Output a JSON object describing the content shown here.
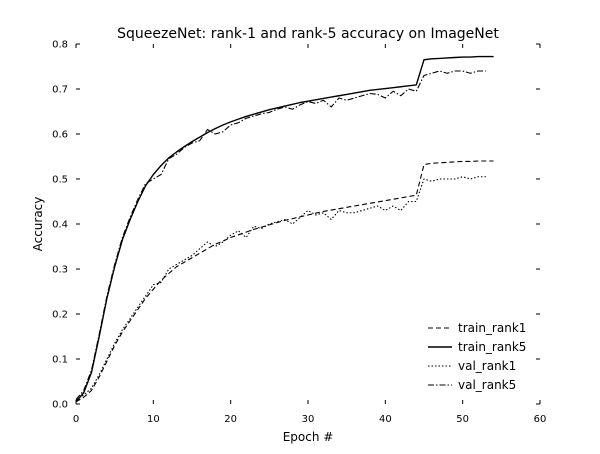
{
  "chart_data": {
    "type": "line",
    "title": "SqueezeNet: rank-1 and rank-5 accuracy on ImageNet",
    "xlabel": "Epoch #",
    "ylabel": "Accuracy",
    "xlim": [
      0,
      60
    ],
    "ylim": [
      0.0,
      0.8
    ],
    "xticks": [
      0,
      10,
      20,
      30,
      40,
      50,
      60
    ],
    "yticks": [
      0.0,
      0.1,
      0.2,
      0.3,
      0.4,
      0.5,
      0.6,
      0.7,
      0.8
    ],
    "xtick_labels": [
      "0",
      "10",
      "20",
      "30",
      "40",
      "50",
      "60"
    ],
    "ytick_labels": [
      "0.0",
      "0.1",
      "0.2",
      "0.3",
      "0.4",
      "0.5",
      "0.6",
      "0.7",
      "0.8"
    ],
    "grid": false,
    "legend_position": "lower-right",
    "series": [
      {
        "name": "train_rank1",
        "style": "dashed",
        "x": [
          0,
          1,
          2,
          3,
          4,
          5,
          6,
          7,
          8,
          9,
          10,
          11,
          12,
          13,
          14,
          15,
          16,
          17,
          18,
          19,
          20,
          21,
          22,
          23,
          24,
          25,
          26,
          27,
          28,
          29,
          30,
          31,
          32,
          33,
          34,
          35,
          36,
          37,
          38,
          39,
          40,
          41,
          42,
          43,
          44,
          45,
          46,
          47,
          48,
          49,
          50,
          51,
          52,
          53,
          54
        ],
        "y": [
          0.005,
          0.015,
          0.03,
          0.06,
          0.095,
          0.13,
          0.16,
          0.185,
          0.21,
          0.235,
          0.255,
          0.275,
          0.29,
          0.305,
          0.315,
          0.325,
          0.335,
          0.345,
          0.355,
          0.362,
          0.37,
          0.376,
          0.382,
          0.388,
          0.393,
          0.398,
          0.403,
          0.408,
          0.412,
          0.416,
          0.42,
          0.424,
          0.428,
          0.431,
          0.434,
          0.437,
          0.44,
          0.443,
          0.446,
          0.449,
          0.452,
          0.455,
          0.458,
          0.461,
          0.464,
          0.532,
          0.535,
          0.536,
          0.537,
          0.538,
          0.539,
          0.539,
          0.54,
          0.54,
          0.54
        ]
      },
      {
        "name": "train_rank5",
        "style": "solid",
        "x": [
          0,
          1,
          2,
          3,
          4,
          5,
          6,
          7,
          8,
          9,
          10,
          11,
          12,
          13,
          14,
          15,
          16,
          17,
          18,
          19,
          20,
          21,
          22,
          23,
          24,
          25,
          26,
          27,
          28,
          29,
          30,
          31,
          32,
          33,
          34,
          35,
          36,
          37,
          38,
          39,
          40,
          41,
          42,
          43,
          44,
          45,
          46,
          47,
          48,
          49,
          50,
          51,
          52,
          53,
          54
        ],
        "y": [
          0.005,
          0.025,
          0.07,
          0.15,
          0.235,
          0.305,
          0.365,
          0.41,
          0.45,
          0.485,
          0.51,
          0.53,
          0.547,
          0.56,
          0.572,
          0.583,
          0.593,
          0.603,
          0.612,
          0.62,
          0.627,
          0.633,
          0.639,
          0.644,
          0.649,
          0.654,
          0.658,
          0.662,
          0.666,
          0.67,
          0.673,
          0.676,
          0.679,
          0.682,
          0.685,
          0.688,
          0.691,
          0.694,
          0.697,
          0.699,
          0.701,
          0.703,
          0.705,
          0.707,
          0.709,
          0.765,
          0.767,
          0.768,
          0.769,
          0.77,
          0.771,
          0.771,
          0.772,
          0.772,
          0.772
        ]
      },
      {
        "name": "val_rank1",
        "style": "dotted",
        "x": [
          0,
          1,
          2,
          3,
          4,
          5,
          6,
          7,
          8,
          9,
          10,
          11,
          12,
          13,
          14,
          15,
          16,
          17,
          18,
          19,
          20,
          21,
          22,
          23,
          24,
          25,
          26,
          27,
          28,
          29,
          30,
          31,
          32,
          33,
          34,
          35,
          36,
          37,
          38,
          39,
          40,
          41,
          42,
          43,
          44,
          45,
          46,
          47,
          48,
          49,
          50,
          51,
          52,
          53
        ],
        "y": [
          0.01,
          0.02,
          0.035,
          0.065,
          0.1,
          0.135,
          0.165,
          0.19,
          0.215,
          0.24,
          0.265,
          0.27,
          0.3,
          0.31,
          0.32,
          0.33,
          0.345,
          0.36,
          0.35,
          0.36,
          0.375,
          0.385,
          0.37,
          0.395,
          0.39,
          0.4,
          0.405,
          0.41,
          0.4,
          0.415,
          0.43,
          0.42,
          0.425,
          0.41,
          0.43,
          0.425,
          0.425,
          0.43,
          0.435,
          0.44,
          0.43,
          0.44,
          0.43,
          0.45,
          0.45,
          0.5,
          0.495,
          0.5,
          0.5,
          0.5,
          0.505,
          0.5,
          0.505,
          0.505
        ]
      },
      {
        "name": "val_rank5",
        "style": "dashdot",
        "x": [
          0,
          1,
          2,
          3,
          4,
          5,
          6,
          7,
          8,
          9,
          10,
          11,
          12,
          13,
          14,
          15,
          16,
          17,
          18,
          19,
          20,
          21,
          22,
          23,
          24,
          25,
          26,
          27,
          28,
          29,
          30,
          31,
          32,
          33,
          34,
          35,
          36,
          37,
          38,
          39,
          40,
          41,
          42,
          43,
          44,
          45,
          46,
          47,
          48,
          49,
          50,
          51,
          52,
          53
        ],
        "y": [
          0.01,
          0.03,
          0.075,
          0.155,
          0.24,
          0.31,
          0.37,
          0.415,
          0.455,
          0.49,
          0.5,
          0.51,
          0.545,
          0.555,
          0.57,
          0.58,
          0.585,
          0.61,
          0.6,
          0.605,
          0.62,
          0.625,
          0.635,
          0.64,
          0.645,
          0.648,
          0.655,
          0.66,
          0.655,
          0.665,
          0.672,
          0.668,
          0.675,
          0.66,
          0.68,
          0.675,
          0.68,
          0.685,
          0.69,
          0.688,
          0.68,
          0.695,
          0.685,
          0.7,
          0.695,
          0.73,
          0.735,
          0.74,
          0.735,
          0.74,
          0.74,
          0.735,
          0.74,
          0.74
        ]
      }
    ]
  },
  "colors": {
    "background": "#ffffff",
    "series": "#000000",
    "text": "#000000"
  }
}
